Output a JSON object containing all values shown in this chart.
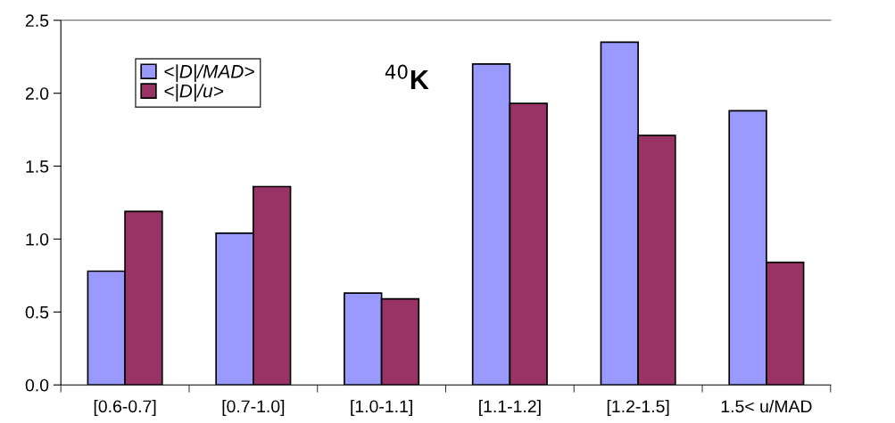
{
  "chart_data": {
    "type": "bar",
    "categories": [
      "[0.6-0.7]",
      "[0.7-1.0]",
      "[1.0-1.1]",
      "[1.1-1.2]",
      "[1.2-1.5]",
      "1.5< u/MAD"
    ],
    "series": [
      {
        "name": "<|D|/MAD>",
        "color": "#9999ff",
        "values": [
          0.78,
          1.04,
          0.63,
          2.2,
          2.35,
          1.88
        ]
      },
      {
        "name": "<|D|/u>",
        "color": "#993366",
        "values": [
          1.19,
          1.36,
          0.59,
          1.93,
          1.71,
          0.84
        ]
      }
    ],
    "annotations": [
      "$^{40}$K"
    ],
    "ylim": [
      0,
      2.5
    ],
    "yticks": [
      {
        "value": 0,
        "label": "0.0"
      },
      {
        "value": 0.5,
        "label": "0.5"
      },
      {
        "value": 1.0,
        "label": "1.0"
      },
      {
        "value": 1.5,
        "label": "1.5"
      },
      {
        "value": 2.0,
        "label": "2.0"
      },
      {
        "value": 2.5,
        "label": "2.5"
      }
    ],
    "grid": false,
    "legend": "top left"
  }
}
